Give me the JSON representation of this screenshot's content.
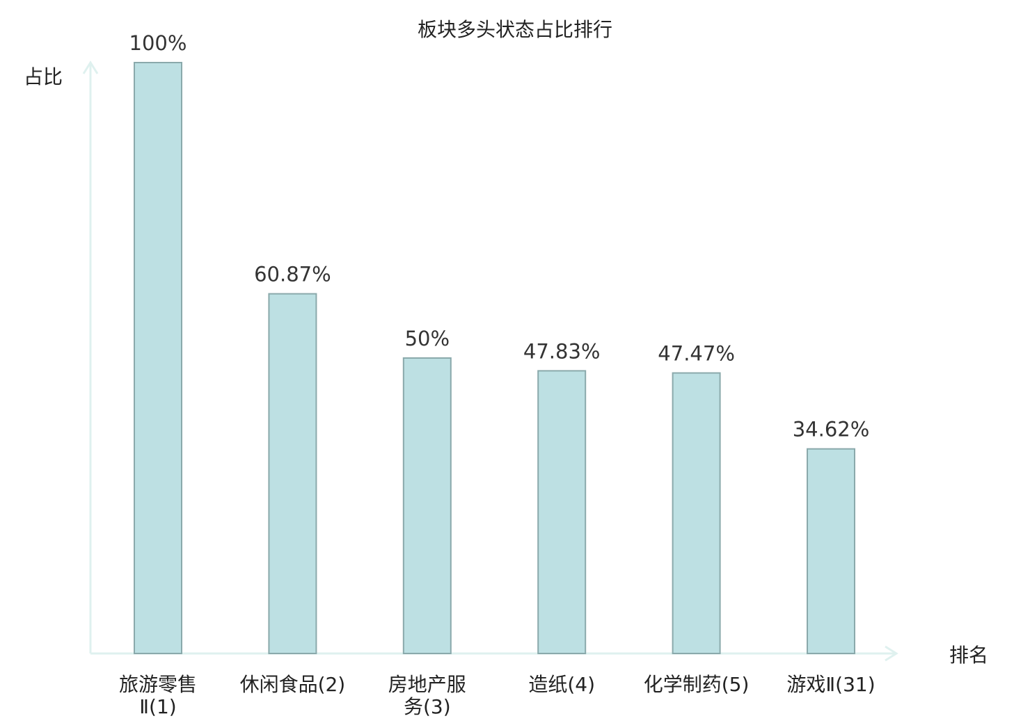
{
  "chart_data": {
    "type": "bar",
    "title": "板块多头状态占比排行",
    "ylabel": "占比",
    "xlabel": "排名",
    "ylim": [
      0,
      100
    ],
    "grid": false,
    "legend": "none",
    "categories": [
      [
        "旅游零售",
        "Ⅱ(1)"
      ],
      [
        "休闲食品(2)"
      ],
      [
        "房地产服",
        "务(3)"
      ],
      [
        "造纸(4)"
      ],
      [
        "化学制药(5)"
      ],
      [
        "游戏Ⅱ(31)"
      ]
    ],
    "values": [
      100,
      60.87,
      50,
      47.83,
      47.47,
      34.62
    ],
    "value_labels": [
      "100%",
      "60.87%",
      "50%",
      "47.83%",
      "47.47%",
      "34.62%"
    ],
    "highlight_index": 5,
    "colors": {
      "bar_fill": "#bde0e3",
      "bar_stroke": "#8aa9ab",
      "axis": "#dff1ef",
      "text": "#222222",
      "highlight": "#e01010"
    }
  }
}
